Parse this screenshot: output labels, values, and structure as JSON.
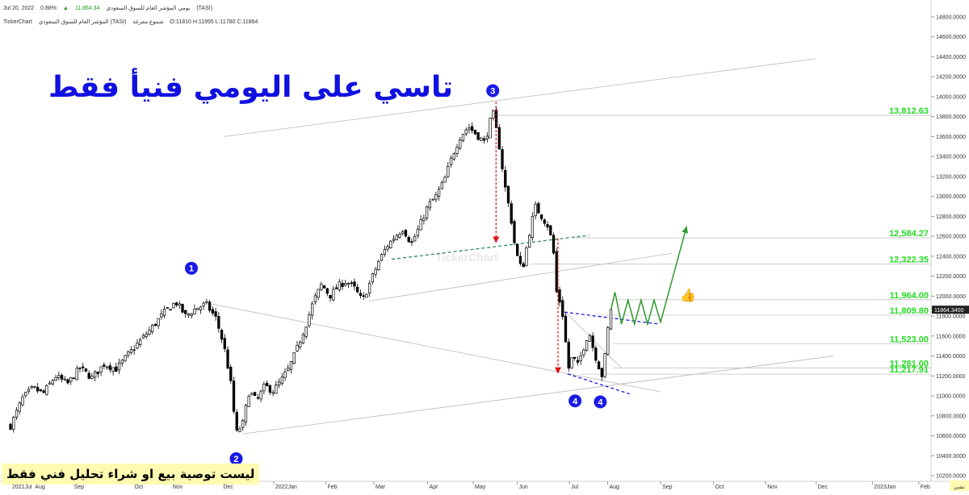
{
  "header": {
    "line1_title": "المؤشر العام للسوق السعودي (TASI)",
    "line1_period": "يومي",
    "line1_price": "11,864.34",
    "line1_change": "0.88%",
    "line1_date": "Jul 20, 2022",
    "line2_brand": "TickerChart",
    "line2_title": "المؤشر العام للسوق السعودي (TASI)",
    "line2_type": "شموع مفرغة",
    "line2_ohlc": "O:11810 H:11995 L:11780 C:11864"
  },
  "overlay_title": "تاسي على اليومي فنيأ فقط",
  "disclaimer": "ليست توصية بيع او شراء تحليل فني فقط",
  "watermark": "TickerChart",
  "current_price_tag": "11864.3400",
  "axis_unit_label": "نشي",
  "colors": {
    "candle_up": "#000000",
    "candle_down": "#000000",
    "level_text": "#22dd22",
    "wave_circle": "#1a1ae6",
    "red_arrow": "#e01010",
    "blue_dash": "#1a1ae6",
    "green_dash": "#2e8b57",
    "green_path": "#2e9a2e"
  },
  "chart_data": {
    "type": "candlestick",
    "title": "",
    "xlabel": "",
    "ylabel": "",
    "ylim": [
      10200,
      14800
    ],
    "y_ticks": [
      "14800.0000",
      "14600.0000",
      "14400.0000",
      "14200.0000",
      "14000.0000",
      "13800.0000",
      "13600.0000",
      "13400.0000",
      "13200.0000",
      "13000.0000",
      "12800.0000",
      "12600.0000",
      "12400.0000",
      "12200.0000",
      "12000.0000",
      "11800.0000",
      "11600.0000",
      "11400.0000",
      "11200.0000",
      "11000.0000",
      "10800.0000",
      "10600.0000",
      "10400.0000",
      "10200.0000"
    ],
    "x_ticks": [
      {
        "label": "2021Jul",
        "d": 0
      },
      {
        "label": "Aug",
        "d": 28
      },
      {
        "label": "Sep",
        "d": 76
      },
      {
        "label": "Oct",
        "d": 150
      },
      {
        "label": "Nov",
        "d": 197
      },
      {
        "label": "Dec",
        "d": 259
      },
      {
        "label": "2022Jan",
        "d": 323
      },
      {
        "label": "Feb",
        "d": 387
      },
      {
        "label": "Mar",
        "d": 446
      },
      {
        "label": "Apr",
        "d": 512
      },
      {
        "label": "May",
        "d": 568
      },
      {
        "label": "Jun",
        "d": 622
      },
      {
        "label": "Jul",
        "d": 686
      },
      {
        "label": "Aug",
        "d": 733
      },
      {
        "label": "Sep",
        "d": 798
      },
      {
        "label": "Oct",
        "d": 863
      },
      {
        "label": "Nov",
        "d": 927
      },
      {
        "label": "Dec",
        "d": 989
      },
      {
        "label": "2023Jan",
        "d": 1058
      },
      {
        "label": "Feb",
        "d": 1115
      }
    ],
    "close_path": [
      [
        0,
        10700
      ],
      [
        15,
        10980
      ],
      [
        28,
        11080
      ],
      [
        40,
        11020
      ],
      [
        55,
        11200
      ],
      [
        70,
        11120
      ],
      [
        85,
        11280
      ],
      [
        100,
        11180
      ],
      [
        115,
        11320
      ],
      [
        130,
        11270
      ],
      [
        145,
        11420
      ],
      [
        160,
        11560
      ],
      [
        175,
        11700
      ],
      [
        190,
        11850
      ],
      [
        203,
        11940
      ],
      [
        215,
        11800
      ],
      [
        228,
        11880
      ],
      [
        240,
        11920
      ],
      [
        252,
        11780
      ],
      [
        262,
        11500
      ],
      [
        270,
        11150
      ],
      [
        277,
        10620
      ],
      [
        285,
        10720
      ],
      [
        293,
        11050
      ],
      [
        302,
        10950
      ],
      [
        312,
        11100
      ],
      [
        322,
        11050
      ],
      [
        332,
        11150
      ],
      [
        342,
        11280
      ],
      [
        352,
        11480
      ],
      [
        362,
        11700
      ],
      [
        372,
        11950
      ],
      [
        382,
        12120
      ],
      [
        392,
        12000
      ],
      [
        402,
        12100
      ],
      [
        412,
        12150
      ],
      [
        422,
        12080
      ],
      [
        432,
        11950
      ],
      [
        442,
        12150
      ],
      [
        452,
        12350
      ],
      [
        462,
        12500
      ],
      [
        472,
        12600
      ],
      [
        482,
        12680
      ],
      [
        492,
        12520
      ],
      [
        502,
        12700
      ],
      [
        512,
        12900
      ],
      [
        522,
        13000
      ],
      [
        532,
        13150
      ],
      [
        542,
        13400
      ],
      [
        552,
        13600
      ],
      [
        562,
        13700
      ],
      [
        572,
        13620
      ],
      [
        582,
        13540
      ],
      [
        592,
        13850
      ],
      [
        600,
        13500
      ],
      [
        607,
        13100
      ],
      [
        614,
        12800
      ],
      [
        620,
        12450
      ],
      [
        628,
        12250
      ],
      [
        636,
        12600
      ],
      [
        644,
        12900
      ],
      [
        652,
        12800
      ],
      [
        660,
        12700
      ],
      [
        666,
        12500
      ],
      [
        670,
        12050
      ],
      [
        676,
        11900
      ],
      [
        680,
        11700
      ],
      [
        684,
        11250
      ],
      [
        690,
        11400
      ],
      [
        696,
        11300
      ],
      [
        704,
        11500
      ],
      [
        710,
        11650
      ],
      [
        716,
        11450
      ],
      [
        722,
        11300
      ],
      [
        727,
        11180
      ],
      [
        732,
        11600
      ],
      [
        737,
        11864
      ]
    ],
    "candle_count": 200,
    "projection_path": [
      [
        737,
        11864
      ],
      [
        742,
        12040
      ],
      [
        750,
        11720
      ],
      [
        758,
        11960
      ],
      [
        766,
        11720
      ],
      [
        774,
        11960
      ],
      [
        782,
        11720
      ],
      [
        790,
        11960
      ],
      [
        798,
        11740
      ],
      [
        830,
        12700
      ]
    ],
    "levels": [
      {
        "value": 13812.63,
        "label": "13,812.63"
      },
      {
        "value": 12584.27,
        "label": "12,584.27"
      },
      {
        "value": 12322.35,
        "label": "12,322.35"
      },
      {
        "value": 11964.0,
        "label": "11,964.00"
      },
      {
        "value": 11809.8,
        "label": "11,809.80"
      },
      {
        "value": 11523.0,
        "label": "11,523.00"
      },
      {
        "value": 11281.0,
        "label": "11,281.00"
      },
      {
        "value": 11217.91,
        "label": "11,217.91"
      }
    ],
    "wave_labels": [
      {
        "label": "1",
        "d": 222,
        "v": 12280
      },
      {
        "label": "2",
        "d": 277,
        "v": 10370
      },
      {
        "label": "3",
        "d": 592,
        "v": 14060
      },
      {
        "label": "4",
        "d": 693,
        "v": 10950
      },
      {
        "label": "4",
        "d": 724,
        "v": 10940
      }
    ],
    "trendlines": [
      {
        "style": "gray",
        "from": [
          262,
          13600
        ],
        "to": [
          988,
          14380
        ]
      },
      {
        "style": "gray",
        "from": [
          440,
          11950
        ],
        "to": [
          812,
          12430
        ]
      },
      {
        "style": "gray",
        "from": [
          248,
          11920
        ],
        "to": [
          798,
          11040
        ]
      },
      {
        "style": "gray",
        "from": [
          285,
          10620
        ],
        "to": [
          1010,
          11400
        ]
      },
      {
        "style": "gray",
        "from": [
          680,
          11850
        ],
        "to": [
          750,
          11280
        ]
      },
      {
        "style": "green-dash",
        "from": [
          468,
          12370
        ],
        "to": [
          710,
          12610
        ]
      },
      {
        "style": "blue-dash",
        "from": [
          680,
          11840
        ],
        "to": [
          796,
          11720
        ]
      },
      {
        "style": "blue-dash",
        "from": [
          684,
          11220
        ],
        "to": [
          760,
          11020
        ]
      }
    ],
    "red_arrows": [
      {
        "d": 596,
        "from": 13950,
        "to": 12540
      },
      {
        "d": 672,
        "from": 12580,
        "to": 11230
      }
    ],
    "level_line_starts": [
      {
        "value": 13812.63,
        "d": 596
      },
      {
        "value": 12584.27,
        "d": 690
      },
      {
        "value": 12322.35,
        "d": 640
      },
      {
        "value": 11964.0,
        "d": 740
      },
      {
        "value": 11809.8,
        "d": 720
      },
      {
        "value": 11523.0,
        "d": 740
      },
      {
        "value": 11281.0,
        "d": 740
      },
      {
        "value": 11217.91,
        "d": 700
      }
    ]
  }
}
